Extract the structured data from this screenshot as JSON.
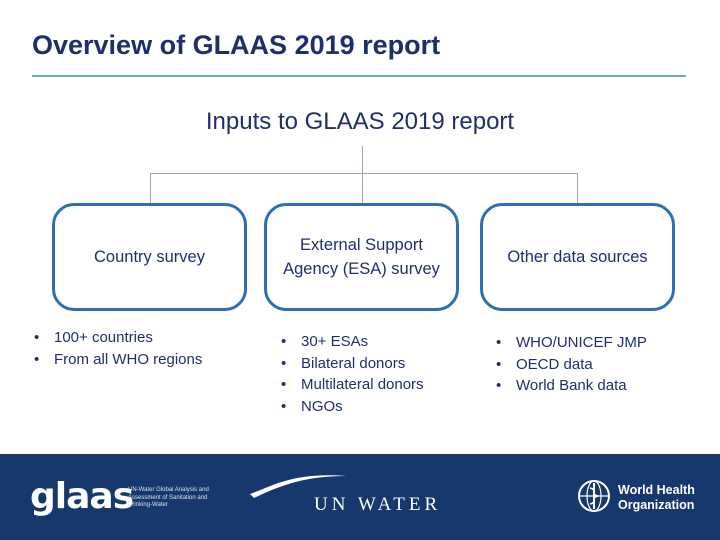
{
  "title": "Overview of GLAAS 2019 report",
  "subtitle": "Inputs to GLAAS 2019 report",
  "cards": [
    {
      "label": "Country survey",
      "bullets": [
        "100+ countries",
        "From all WHO regions"
      ]
    },
    {
      "label": "External Support Agency (ESA) survey",
      "bullets": [
        "30+ ESAs",
        "Bilateral donors",
        "Multilateral donors",
        "NGOs"
      ]
    },
    {
      "label": "Other data sources",
      "bullets": [
        "WHO/UNICEF JMP",
        "OECD data",
        "World Bank data"
      ]
    }
  ],
  "footer": {
    "glaas_logo": "glaas",
    "glaas_description": "UN-Water Global Analysis and Assessment of Sanitation and Drinking-Water",
    "unwater_logo": "UN WATER",
    "who_logo": "World Health Organization",
    "icons": [
      "glaas-logo-icon",
      "unwater-swoosh-icon",
      "who-emblem-icon"
    ]
  },
  "colors": {
    "title": "#1e2f6b",
    "card_border": "#2d6fb2",
    "rule": "#6fa8c9",
    "connector": "#9aa4b4",
    "footer_bg": "#17386c"
  }
}
